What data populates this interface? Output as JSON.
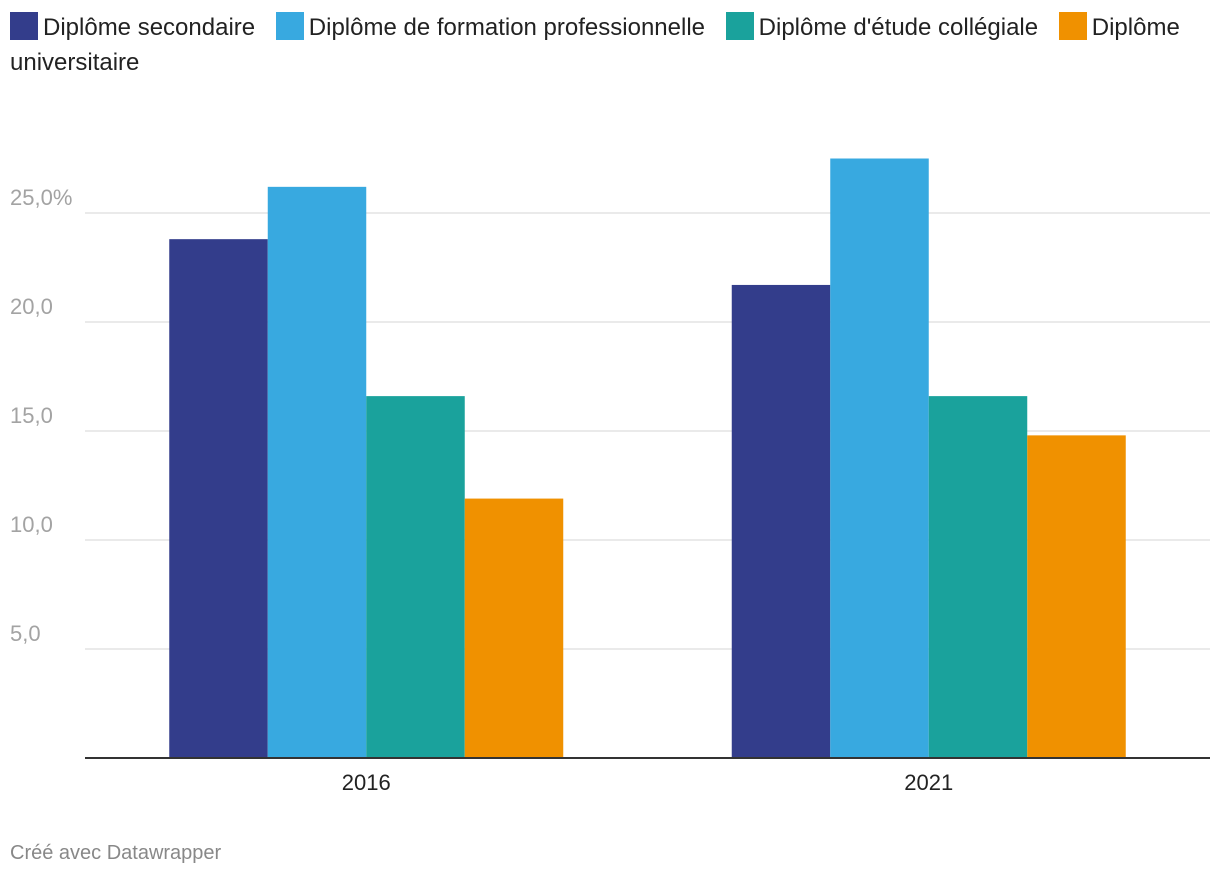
{
  "chart_data": {
    "type": "bar",
    "categories": [
      "2016",
      "2021"
    ],
    "series": [
      {
        "name": "Diplôme secondaire",
        "color": "#333d8b",
        "values": [
          23.8,
          21.7
        ]
      },
      {
        "name": "Diplôme de formation professionnelle",
        "color": "#38a9e0",
        "values": [
          26.2,
          27.5
        ]
      },
      {
        "name": "Diplôme d'étude collégiale",
        "color": "#1aa29c",
        "values": [
          16.6,
          16.6
        ]
      },
      {
        "name": "Diplôme universitaire",
        "color": "#f09100",
        "values": [
          11.9,
          14.8
        ]
      }
    ],
    "yticks": [
      {
        "value": 5,
        "label": "5,0"
      },
      {
        "value": 10,
        "label": "10,0"
      },
      {
        "value": 15,
        "label": "15,0"
      },
      {
        "value": 20,
        "label": "20,0"
      },
      {
        "value": 25,
        "label": "25,0%"
      }
    ],
    "ylim": [
      0,
      25
    ],
    "grid": true,
    "legend_position": "top"
  },
  "footer": {
    "credit": "Créé avec Datawrapper"
  }
}
